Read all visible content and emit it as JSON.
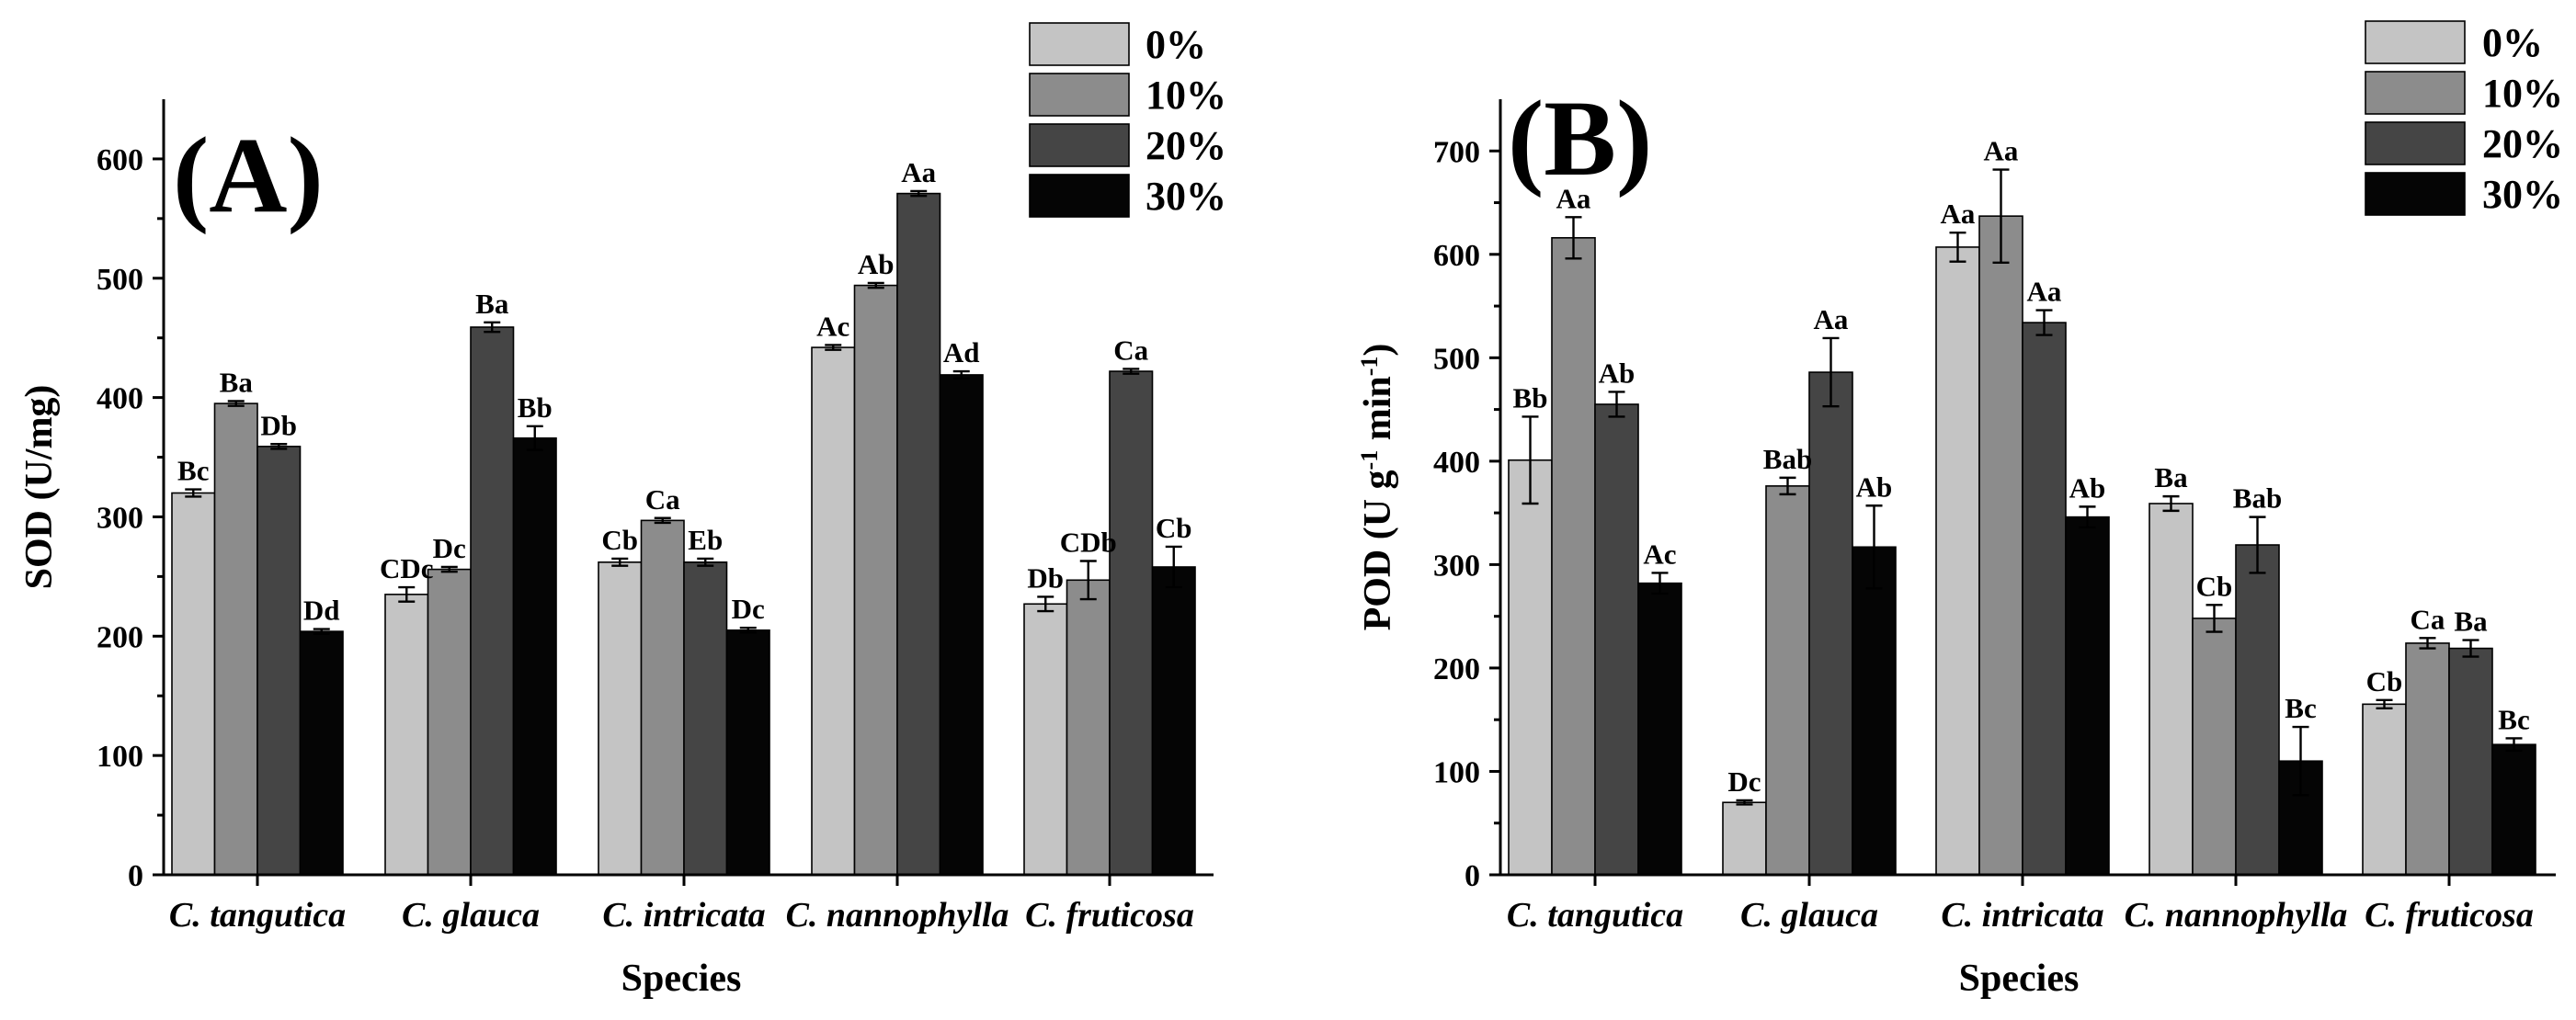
{
  "chart_data": [
    {
      "panel": "(A)",
      "type": "bar",
      "ylabel": "SOD (U/mg)",
      "xlabel": "Species",
      "ylim": [
        0,
        650
      ],
      "yticks": [
        0,
        100,
        200,
        300,
        400,
        500,
        600
      ],
      "categories": [
        "C. tangutica",
        "C. glauca",
        "C. intricata",
        "C. nannophylla",
        "C. fruticosa"
      ],
      "legend": [
        "0%",
        "10%",
        "20%",
        "30%"
      ],
      "legend_position": "top-right",
      "series": [
        {
          "name": "0%",
          "color": "#c4c4c4",
          "values": [
            320,
            235,
            262,
            442,
            227
          ],
          "errors": [
            3,
            6,
            3,
            2,
            6
          ],
          "labels": [
            "Bc",
            "CDc",
            "Cb",
            "Ac",
            "Db"
          ]
        },
        {
          "name": "10%",
          "color": "#8c8c8c",
          "values": [
            395,
            256,
            297,
            494,
            247
          ],
          "errors": [
            2,
            2,
            2,
            2,
            16
          ],
          "labels": [
            "Ba",
            "Dc",
            "Ca",
            "Ab",
            "CDb"
          ]
        },
        {
          "name": "20%",
          "color": "#454545",
          "values": [
            359,
            459,
            262,
            571,
            422
          ],
          "errors": [
            2,
            4,
            3,
            2,
            2
          ],
          "labels": [
            "Db",
            "Ba",
            "Eb",
            "Aa",
            "Ca"
          ]
        },
        {
          "name": "30%",
          "color": "#050505",
          "values": [
            204,
            366,
            205,
            419,
            258
          ],
          "errors": [
            2,
            10,
            2,
            3,
            17
          ],
          "labels": [
            "Dd",
            "Bb",
            "Dc",
            "Ad",
            "Cb"
          ]
        }
      ]
    },
    {
      "panel": "(B)",
      "type": "bar",
      "ylabel_main": "POD (U g",
      "ylabel_sup1": "-1",
      "ylabel_mid": " min",
      "ylabel_sup2": "-1",
      "ylabel_end": ")",
      "xlabel": "Species",
      "ylim": [
        0,
        750
      ],
      "yticks": [
        0,
        100,
        200,
        300,
        400,
        500,
        600,
        700
      ],
      "categories": [
        "C. tangutica",
        "C. glauca",
        "C. intricata",
        "C. nannophylla",
        "C. fruticosa"
      ],
      "legend": [
        "0%",
        "10%",
        "20%",
        "30%"
      ],
      "legend_position": "top-right",
      "series": [
        {
          "name": "0%",
          "color": "#c4c4c4",
          "values": [
            401,
            70,
            607,
            359,
            165
          ],
          "errors": [
            42,
            2,
            14,
            7,
            4
          ],
          "labels": [
            "Bb",
            "Dc",
            "Aa",
            "Ba",
            "Cb"
          ]
        },
        {
          "name": "10%",
          "color": "#8c8c8c",
          "values": [
            616,
            376,
            637,
            248,
            224
          ],
          "errors": [
            20,
            8,
            45,
            13,
            5
          ],
          "labels": [
            "Aa",
            "Bab",
            "Aa",
            "Cb",
            "Ca"
          ]
        },
        {
          "name": "20%",
          "color": "#454545",
          "values": [
            455,
            486,
            534,
            319,
            219
          ],
          "errors": [
            12,
            33,
            12,
            27,
            8
          ],
          "labels": [
            "Ab",
            "Aa",
            "Aa",
            "Bab",
            "Ba"
          ]
        },
        {
          "name": "30%",
          "color": "#050505",
          "values": [
            282,
            317,
            346,
            110,
            126
          ],
          "errors": [
            10,
            40,
            10,
            33,
            6
          ],
          "labels": [
            "Ac",
            "Ab",
            "Ab",
            "Bc",
            "Bc"
          ]
        }
      ]
    }
  ]
}
